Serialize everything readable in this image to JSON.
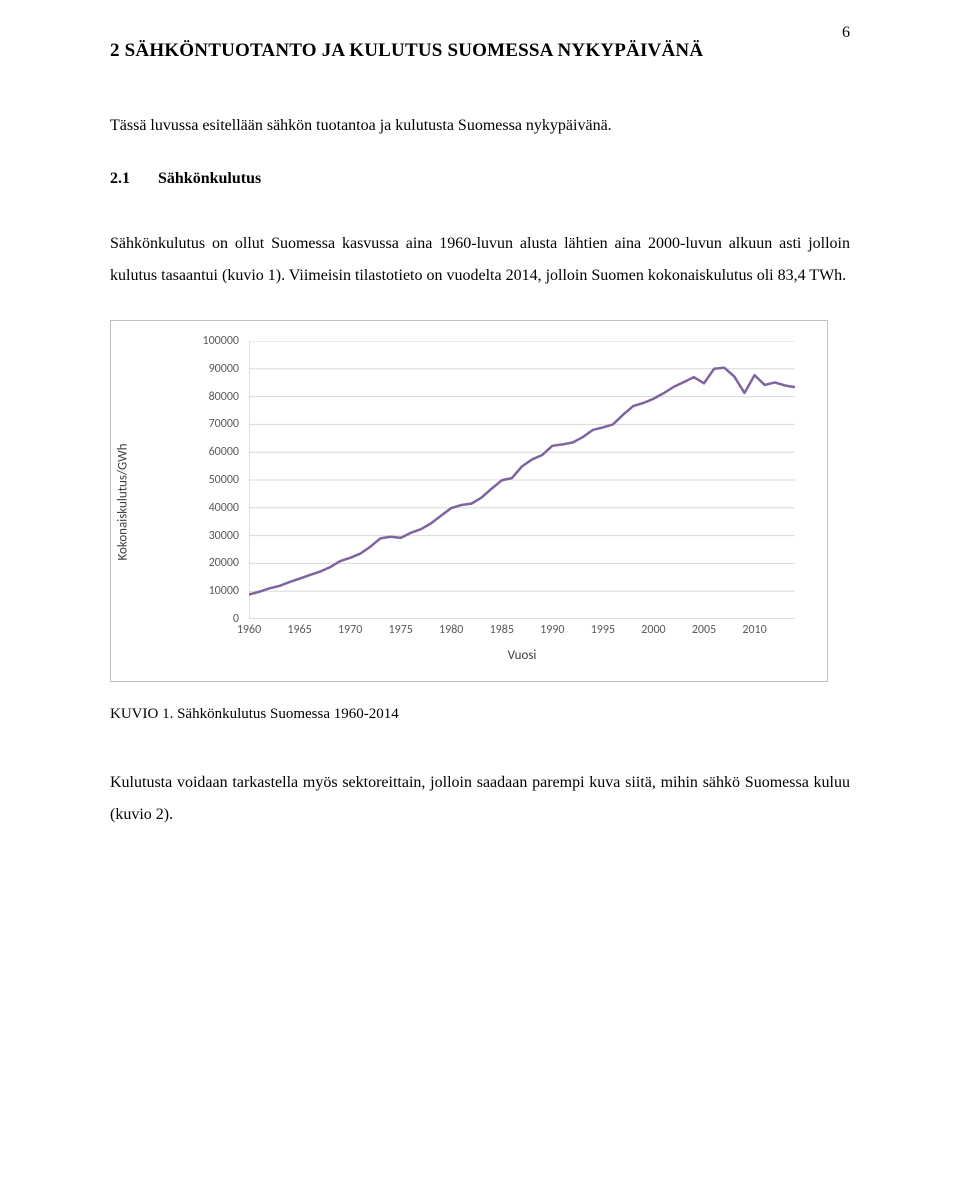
{
  "page_number": "6",
  "heading": "2  SÄHKÖNTUOTANTO JA KULUTUS SUOMESSA NYKYPÄIVÄNÄ",
  "intro_paragraph": "Tässä luvussa esitellään sähkön tuotantoa ja kulutusta Suomessa nykypäivänä.",
  "subsection": {
    "number": "2.1",
    "title": "Sähkönkulutus"
  },
  "paragraph_2": "Sähkönkulutus on ollut Suomessa kasvussa aina 1960-luvun alusta lähtien aina 2000-luvun alkuun asti jolloin kulutus tasaantui (kuvio 1). Viimeisin tilastotieto on vuodelta 2014, jolloin Suomen kokonaiskulutus oli 83,4 TWh.",
  "chart": {
    "type": "line",
    "y_axis_title": "Kokonaiskulutus/GWh",
    "x_axis_title": "Vuosi",
    "ylim": [
      0,
      100000
    ],
    "xlim": [
      1960,
      2014
    ],
    "y_ticks": [
      0,
      10000,
      20000,
      30000,
      40000,
      50000,
      60000,
      70000,
      80000,
      90000,
      100000
    ],
    "x_ticks": [
      1960,
      1965,
      1970,
      1975,
      1980,
      1985,
      1990,
      1995,
      2000,
      2005,
      2010
    ],
    "grid_color": "#d9d9d9",
    "axis_color": "#bfbfbf",
    "tick_label_color": "#595959",
    "background_color": "#ffffff",
    "line_color": "#8064a2",
    "line_width": 2.5,
    "axis_title_color": "#404040",
    "tick_label_fontsize": 12,
    "axis_title_fontsize": 13,
    "series": [
      {
        "x": 1960,
        "y": 8800
      },
      {
        "x": 1961,
        "y": 9800
      },
      {
        "x": 1962,
        "y": 11000
      },
      {
        "x": 1963,
        "y": 11900
      },
      {
        "x": 1964,
        "y": 13300
      },
      {
        "x": 1965,
        "y": 14500
      },
      {
        "x": 1966,
        "y": 15800
      },
      {
        "x": 1967,
        "y": 17000
      },
      {
        "x": 1968,
        "y": 18600
      },
      {
        "x": 1969,
        "y": 20800
      },
      {
        "x": 1970,
        "y": 22000
      },
      {
        "x": 1971,
        "y": 23500
      },
      {
        "x": 1972,
        "y": 26000
      },
      {
        "x": 1973,
        "y": 29000
      },
      {
        "x": 1974,
        "y": 29600
      },
      {
        "x": 1975,
        "y": 29200
      },
      {
        "x": 1976,
        "y": 31000
      },
      {
        "x": 1977,
        "y": 32300
      },
      {
        "x": 1978,
        "y": 34400
      },
      {
        "x": 1979,
        "y": 37200
      },
      {
        "x": 1980,
        "y": 39900
      },
      {
        "x": 1981,
        "y": 41000
      },
      {
        "x": 1982,
        "y": 41500
      },
      {
        "x": 1983,
        "y": 43700
      },
      {
        "x": 1984,
        "y": 46900
      },
      {
        "x": 1985,
        "y": 49900
      },
      {
        "x": 1986,
        "y": 50700
      },
      {
        "x": 1987,
        "y": 54900
      },
      {
        "x": 1988,
        "y": 57400
      },
      {
        "x": 1989,
        "y": 59000
      },
      {
        "x": 1990,
        "y": 62300
      },
      {
        "x": 1991,
        "y": 62800
      },
      {
        "x": 1992,
        "y": 63500
      },
      {
        "x": 1993,
        "y": 65400
      },
      {
        "x": 1994,
        "y": 68000
      },
      {
        "x": 1995,
        "y": 68900
      },
      {
        "x": 1996,
        "y": 70000
      },
      {
        "x": 1997,
        "y": 73500
      },
      {
        "x": 1998,
        "y": 76600
      },
      {
        "x": 1999,
        "y": 77700
      },
      {
        "x": 2000,
        "y": 79200
      },
      {
        "x": 2001,
        "y": 81200
      },
      {
        "x": 2002,
        "y": 83500
      },
      {
        "x": 2003,
        "y": 85200
      },
      {
        "x": 2004,
        "y": 87000
      },
      {
        "x": 2005,
        "y": 84800
      },
      {
        "x": 2006,
        "y": 90000
      },
      {
        "x": 2007,
        "y": 90400
      },
      {
        "x": 2008,
        "y": 87200
      },
      {
        "x": 2009,
        "y": 81300
      },
      {
        "x": 2010,
        "y": 87700
      },
      {
        "x": 2011,
        "y": 84200
      },
      {
        "x": 2012,
        "y": 85100
      },
      {
        "x": 2013,
        "y": 84000
      },
      {
        "x": 2014,
        "y": 83400
      }
    ]
  },
  "caption": "KUVIO 1. Sähkönkulutus Suomessa 1960-2014",
  "paragraph_3": "Kulutusta voidaan tarkastella myös sektoreittain, jolloin saadaan parempi kuva siitä, mihin sähkö Suomessa kuluu (kuvio 2)."
}
